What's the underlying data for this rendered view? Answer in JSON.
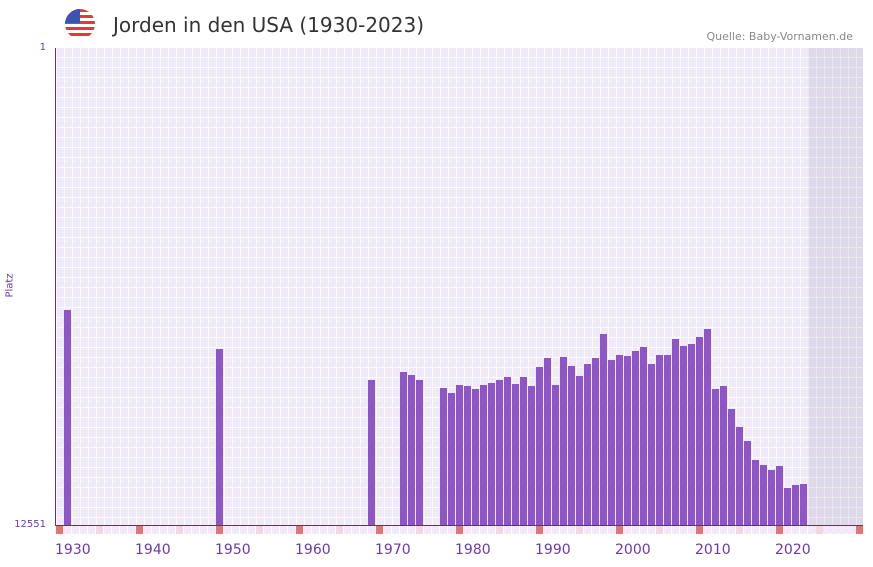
{
  "header": {
    "title": "Jorden in den USA (1930-2023)",
    "source": "Quelle: Baby-Vornamen.de",
    "flag_icon": "us-flag-icon"
  },
  "colors": {
    "bar": "#8e55c7",
    "decade_marker": "#e57373",
    "half_decade_marker": "#f5d5de",
    "axis": "#5b2d8e"
  },
  "chart_data": {
    "type": "bar",
    "title": "Jorden in den USA (1930-2023)",
    "xlabel": "",
    "ylabel": "Platz",
    "y_ticks": [
      "1",
      "12551"
    ],
    "ylim": [
      12551,
      1
    ],
    "y_inverted": true,
    "xlim": [
      1930,
      2030
    ],
    "x_ticks": [
      "1930",
      "1940",
      "1950",
      "1960",
      "1970",
      "1980",
      "1990",
      "2000",
      "2010",
      "2020"
    ],
    "shaded_from_year": 2024,
    "years": [
      1931,
      1950,
      1969,
      1973,
      1974,
      1975,
      1978,
      1979,
      1980,
      1981,
      1982,
      1983,
      1984,
      1985,
      1986,
      1987,
      1988,
      1989,
      1990,
      1991,
      1992,
      1993,
      1994,
      1995,
      1996,
      1997,
      1998,
      1999,
      2000,
      2001,
      2002,
      2003,
      2004,
      2005,
      2006,
      2007,
      2008,
      2009,
      2010,
      2011,
      2012,
      2013,
      2014,
      2015,
      2016,
      2017,
      2018,
      2019,
      2020,
      2021,
      2022,
      2023
    ],
    "values": [
      6894,
      7920,
      8736,
      8525,
      8604,
      8736,
      8946,
      9078,
      8867,
      8894,
      8973,
      8867,
      8815,
      8736,
      8657,
      8841,
      8657,
      8894,
      8394,
      8157,
      8867,
      8131,
      8368,
      8631,
      8315,
      8157,
      7526,
      8210,
      8078,
      8104,
      7973,
      7868,
      8315,
      8078,
      8078,
      7657,
      7841,
      7789,
      7605,
      7394,
      8973,
      8894,
      9499,
      9972,
      10341,
      10841,
      10972,
      11104,
      10999,
      11577,
      11498,
      11472
    ]
  }
}
